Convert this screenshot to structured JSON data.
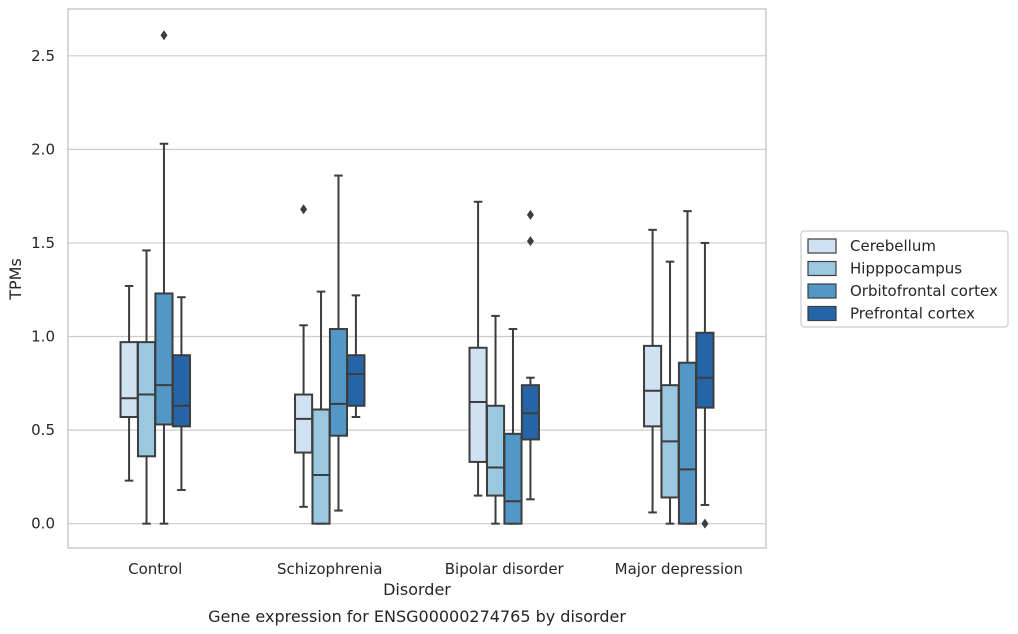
{
  "chart_data": {
    "type": "box",
    "ylabel": "TPMs",
    "xlabel": "Disorder",
    "caption": "Gene expression for ENSG00000274765 by disorder",
    "ylim": [
      -0.13,
      2.75
    ],
    "yticks": [
      0.0,
      0.5,
      1.0,
      1.5,
      2.0,
      2.5
    ],
    "ytick_labels": [
      "0.0",
      "0.5",
      "1.0",
      "1.5",
      "2.0",
      "2.5"
    ],
    "grid": "horizontal",
    "legend_position": "right",
    "categories": [
      "Control",
      "Schizophrenia",
      "Bipolar disorder",
      "Major depression"
    ],
    "series": [
      {
        "name": "Cerebellum",
        "color": "#d0e1f2",
        "boxes": [
          {
            "whisker_low": 0.23,
            "q1": 0.57,
            "median": 0.67,
            "q3": 0.97,
            "whisker_high": 1.27,
            "outliers": []
          },
          {
            "whisker_low": 0.09,
            "q1": 0.38,
            "median": 0.56,
            "q3": 0.69,
            "whisker_high": 1.06,
            "outliers": [
              1.68
            ]
          },
          {
            "whisker_low": 0.15,
            "q1": 0.33,
            "median": 0.65,
            "q3": 0.94,
            "whisker_high": 1.72,
            "outliers": []
          },
          {
            "whisker_low": 0.06,
            "q1": 0.52,
            "median": 0.71,
            "q3": 0.95,
            "whisker_high": 1.57,
            "outliers": []
          }
        ]
      },
      {
        "name": "Hipppocampus",
        "color": "#9ac8e0",
        "boxes": [
          {
            "whisker_low": 0.0,
            "q1": 0.36,
            "median": 0.69,
            "q3": 0.97,
            "whisker_high": 1.46,
            "outliers": []
          },
          {
            "whisker_low": 0.0,
            "q1": 0.0,
            "median": 0.26,
            "q3": 0.61,
            "whisker_high": 1.24,
            "outliers": []
          },
          {
            "whisker_low": 0.0,
            "q1": 0.15,
            "median": 0.3,
            "q3": 0.63,
            "whisker_high": 1.11,
            "outliers": []
          },
          {
            "whisker_low": 0.0,
            "q1": 0.14,
            "median": 0.44,
            "q3": 0.74,
            "whisker_high": 1.4,
            "outliers": []
          }
        ]
      },
      {
        "name": "Orbitofrontal cortex",
        "color": "#5397c6",
        "boxes": [
          {
            "whisker_low": 0.0,
            "q1": 0.53,
            "median": 0.74,
            "q3": 1.23,
            "whisker_high": 2.03,
            "outliers": [
              2.61
            ]
          },
          {
            "whisker_low": 0.07,
            "q1": 0.47,
            "median": 0.64,
            "q3": 1.04,
            "whisker_high": 1.86,
            "outliers": []
          },
          {
            "whisker_low": 0.0,
            "q1": 0.0,
            "median": 0.12,
            "q3": 0.48,
            "whisker_high": 1.04,
            "outliers": []
          },
          {
            "whisker_low": 0.0,
            "q1": 0.0,
            "median": 0.29,
            "q3": 0.86,
            "whisker_high": 1.67,
            "outliers": []
          }
        ]
      },
      {
        "name": "Prefrontal cortex",
        "color": "#2565a7",
        "boxes": [
          {
            "whisker_low": 0.18,
            "q1": 0.52,
            "median": 0.63,
            "q3": 0.9,
            "whisker_high": 1.21,
            "outliers": []
          },
          {
            "whisker_low": 0.57,
            "q1": 0.63,
            "median": 0.8,
            "q3": 0.9,
            "whisker_high": 1.22,
            "outliers": []
          },
          {
            "whisker_low": 0.13,
            "q1": 0.45,
            "median": 0.59,
            "q3": 0.74,
            "whisker_high": 0.78,
            "outliers": [
              1.51,
              1.65
            ]
          },
          {
            "whisker_low": 0.1,
            "q1": 0.62,
            "median": 0.78,
            "q3": 1.02,
            "whisker_high": 1.5,
            "outliers": [
              0.0
            ]
          }
        ]
      }
    ]
  }
}
